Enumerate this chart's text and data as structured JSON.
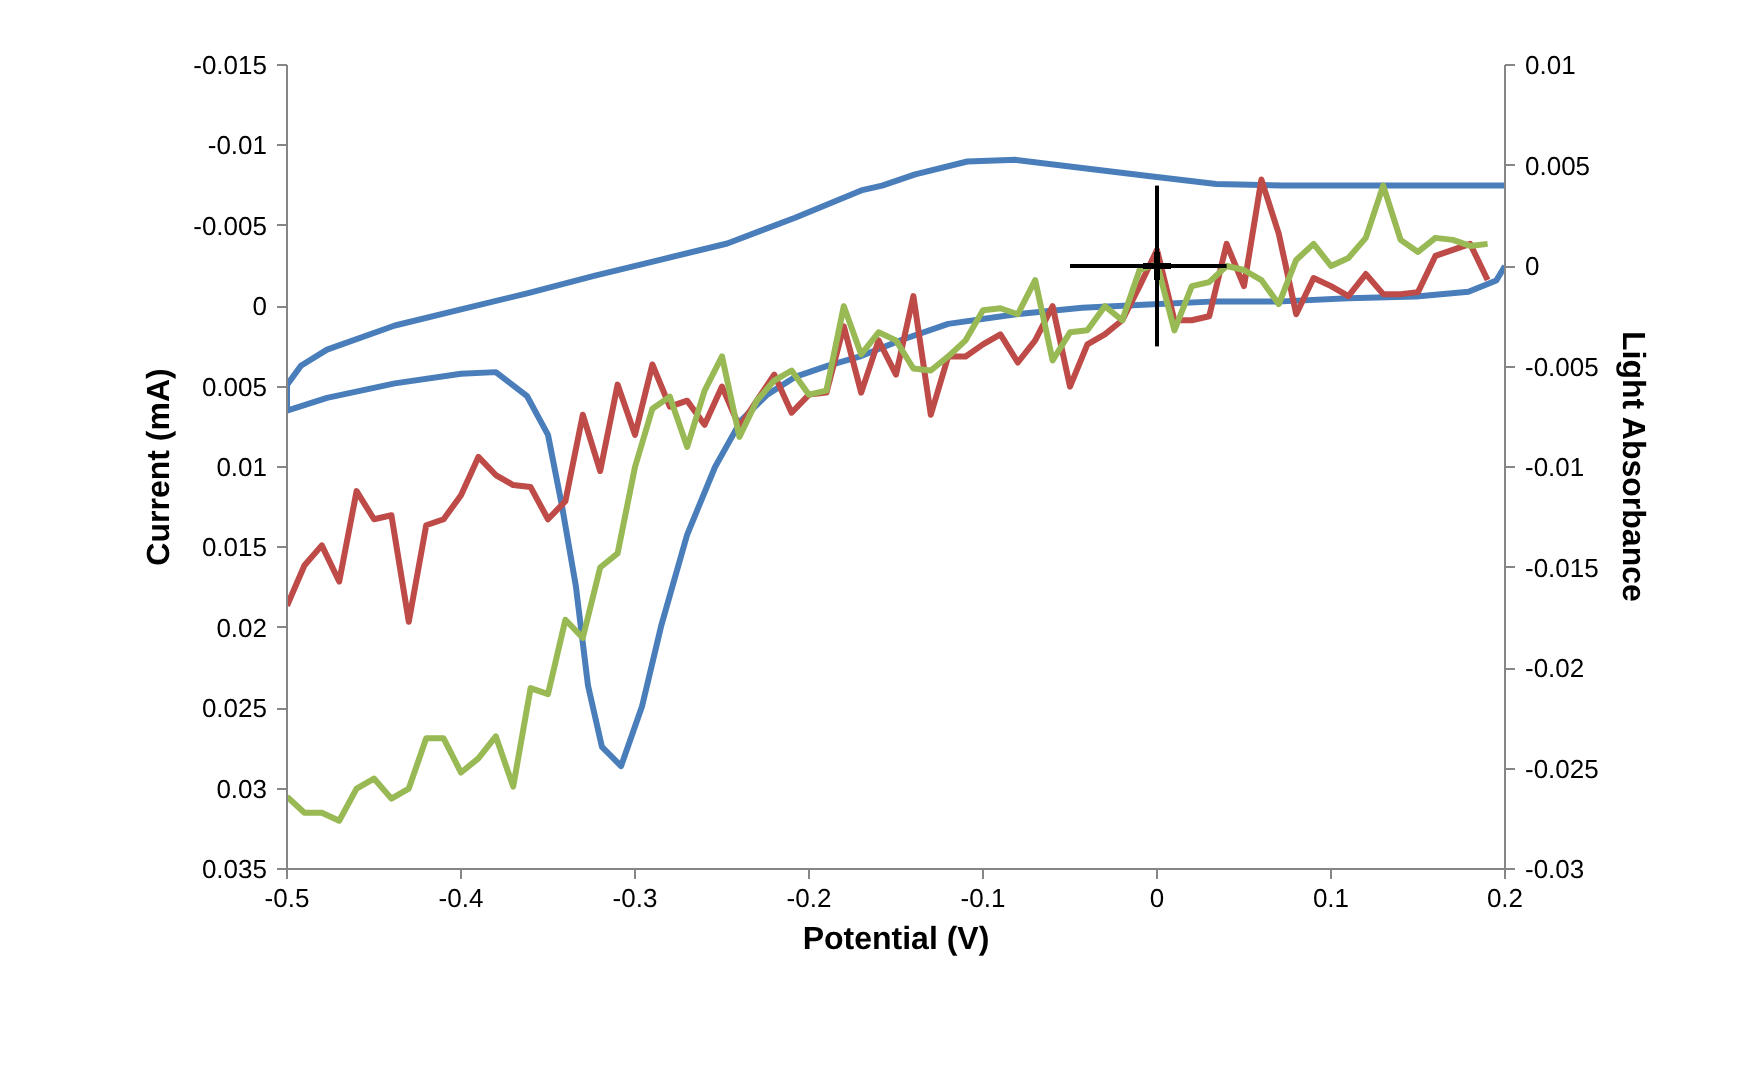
{
  "chart_data": {
    "type": "line",
    "xlabel": "Potential (V)",
    "ylabel": "Current (mA)",
    "y2label": "Light Absorbance",
    "xlim": [
      -0.5,
      0.2
    ],
    "xticks": [
      -0.5,
      -0.4,
      -0.3,
      -0.2,
      -0.1,
      0,
      0.1,
      0.2
    ],
    "ylim": [
      0.035,
      -0.015
    ],
    "yticks": [
      -0.015,
      -0.01,
      -0.005,
      0,
      0.005,
      0.01,
      0.015,
      0.02,
      0.025,
      0.03,
      0.035
    ],
    "y2lim": [
      -0.03,
      0.01
    ],
    "y2ticks": [
      -0.03,
      -0.025,
      -0.02,
      -0.015,
      -0.01,
      -0.005,
      0,
      0.005,
      0.01
    ],
    "grid": false,
    "marker": "none",
    "line_style": "solid",
    "x": [
      -0.5,
      -0.49,
      -0.48,
      -0.47,
      -0.46,
      -0.45,
      -0.44,
      -0.43,
      -0.42,
      -0.41,
      -0.4,
      -0.39,
      -0.38,
      -0.37,
      -0.36,
      -0.35,
      -0.34,
      -0.33,
      -0.32,
      -0.31,
      -0.3,
      -0.29,
      -0.28,
      -0.27,
      -0.26,
      -0.25,
      -0.24,
      -0.23,
      -0.22,
      -0.21,
      -0.2,
      -0.19,
      -0.18,
      -0.17,
      -0.16,
      -0.15,
      -0.14,
      -0.13,
      -0.12,
      -0.11,
      -0.1,
      -0.09,
      -0.08,
      -0.07,
      -0.06,
      -0.05,
      -0.04,
      -0.03,
      -0.02,
      -0.01,
      0,
      0.01,
      0.02,
      0.03,
      0.04,
      0.05,
      0.06,
      0.07,
      0.08,
      0.09,
      0.1,
      0.11,
      0.12,
      0.13,
      0.14,
      0.15,
      0.16,
      0.17,
      0.18,
      0.19
    ],
    "series": [
      {
        "color": "#4a7ebb",
        "x": [
          0.2,
          0.072,
          0.034,
          -0.005,
          -0.043,
          -0.081,
          -0.109,
          -0.139,
          -0.158,
          -0.17,
          -0.208,
          -0.247,
          -0.285,
          -0.323,
          -0.362,
          -0.4,
          -0.438,
          -0.477,
          -0.492,
          -0.5,
          -0.5,
          -0.477,
          -0.438,
          -0.4,
          -0.38,
          -0.362,
          -0.35,
          -0.342,
          -0.334,
          -0.327,
          -0.319,
          -0.308,
          -0.296,
          -0.285,
          -0.27,
          -0.254,
          -0.239,
          -0.224,
          -0.208,
          -0.189,
          -0.17,
          -0.147,
          -0.12,
          -0.081,
          -0.043,
          -0.005,
          0.034,
          0.072,
          0.11,
          0.149,
          0.179,
          0.195,
          0.2
        ],
        "values": [
          -0.0075,
          -0.0075,
          -0.0076,
          -0.0081,
          -0.0086,
          -0.0091,
          -0.009,
          -0.0082,
          -0.0075,
          -0.0072,
          -0.0055,
          -0.0039,
          -0.0029,
          -0.0019,
          -0.0008,
          0.0002,
          0.0012,
          0.0027,
          0.0037,
          0.0049,
          0.0065,
          0.0057,
          0.0048,
          0.0042,
          0.0041,
          0.0056,
          0.008,
          0.0124,
          0.0174,
          0.0236,
          0.0274,
          0.0286,
          0.0249,
          0.0199,
          0.0142,
          0.01,
          0.0071,
          0.0055,
          0.0044,
          0.0037,
          0.0031,
          0.0021,
          0.0011,
          0.0005,
          0.0001,
          -0.0001,
          -0.0003,
          -0.0003,
          -0.0005,
          -0.0006,
          -0.0009,
          -0.0016,
          -0.0025
        ]
      },
      {
        "axis": "y2",
        "color": "#be4b48",
        "values": [
          -0.0169,
          -0.0149,
          -0.0139,
          -0.0157,
          -0.0112,
          -0.0126,
          -0.0124,
          -0.0177,
          -0.0129,
          -0.0126,
          -0.0114,
          -0.0095,
          -0.0104,
          -0.0109,
          -0.011,
          -0.0126,
          -0.0117,
          -0.0074,
          -0.0102,
          -0.0059,
          -0.0084,
          -0.0049,
          -0.007,
          -0.0067,
          -0.0079,
          -0.006,
          -0.008,
          -0.0067,
          -0.0054,
          -0.0073,
          -0.0064,
          -0.0063,
          -0.003,
          -0.0063,
          -0.0037,
          -0.0054,
          -0.0015,
          -0.0074,
          -0.0045,
          -0.0045,
          -0.0039,
          -0.0034,
          -0.0048,
          -0.0037,
          -0.002,
          -0.006,
          -0.0039,
          -0.0034,
          -0.0027,
          -0.001,
          0.0008,
          -0.0027,
          -0.0027,
          -0.0025,
          0.0011,
          -0.001,
          0.0043,
          0.0016,
          -0.0024,
          -0.0006,
          -0.001,
          -0.0015,
          -0.0004,
          -0.0014,
          -0.0014,
          -0.0013,
          0.0005,
          0.0008,
          0.0011,
          -0.0007
        ]
      },
      {
        "axis": "y2",
        "color": "#98b954",
        "values": [
          -0.0264,
          -0.0272,
          -0.0272,
          -0.0276,
          -0.026,
          -0.0255,
          -0.0265,
          -0.026,
          -0.0235,
          -0.0235,
          -0.0252,
          -0.0245,
          -0.0234,
          -0.0259,
          -0.021,
          -0.0213,
          -0.0176,
          -0.0185,
          -0.015,
          -0.0143,
          -0.01,
          -0.0071,
          -0.0065,
          -0.009,
          -0.0062,
          -0.0045,
          -0.0085,
          -0.0067,
          -0.0057,
          -0.0052,
          -0.0064,
          -0.0062,
          -0.002,
          -0.0044,
          -0.0033,
          -0.0037,
          -0.0051,
          -0.0052,
          -0.0045,
          -0.0037,
          -0.0022,
          -0.0021,
          -0.0024,
          -0.0007,
          -0.0047,
          -0.0033,
          -0.0032,
          -0.002,
          -0.0027,
          -0.0002,
          0.0001,
          -0.0032,
          -0.001,
          -0.0008,
          0,
          -0.0002,
          -0.0007,
          -0.0019,
          0.0003,
          0.0011,
          0,
          0.0004,
          0.0014,
          0.004,
          0.0013,
          0.0007,
          0.0014,
          0.0013,
          0.001,
          0.0011
        ]
      },
      {
        "type": "scatter",
        "axis": "y2",
        "marker": "cross",
        "color": "#000000",
        "x": [
          0
        ],
        "values": [
          0
        ],
        "errors": [
          0.004
        ],
        "xerrors": [
          [
            -0.05,
            0.04
          ]
        ]
      }
    ]
  }
}
